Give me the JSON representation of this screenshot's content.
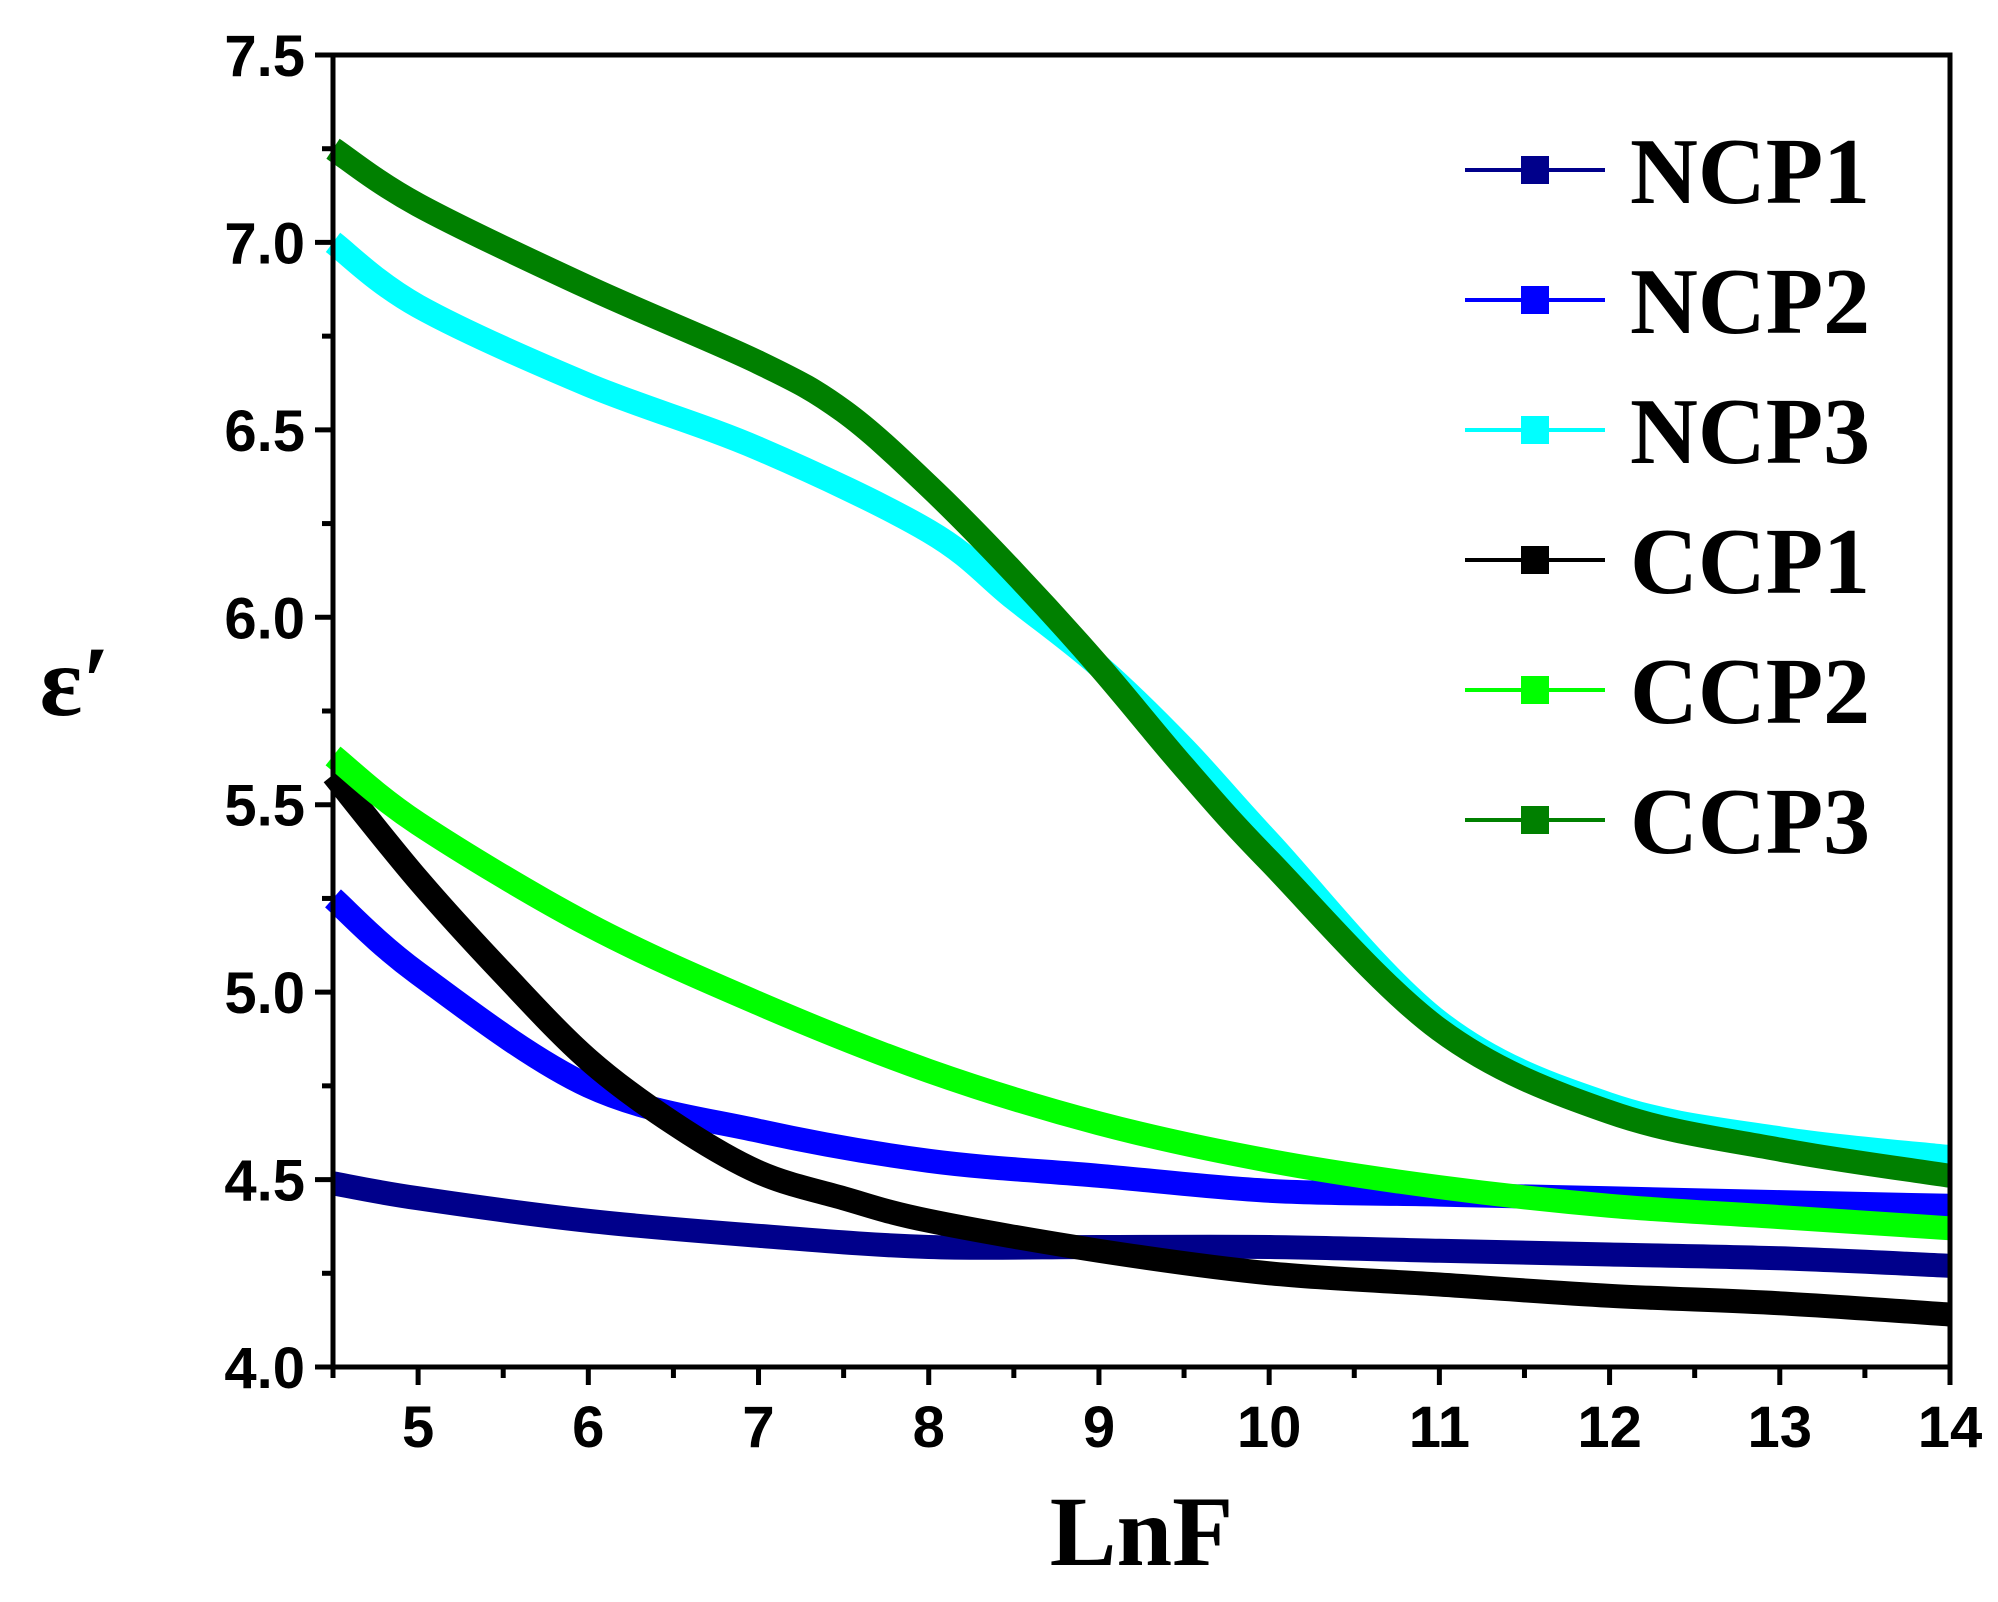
{
  "chart_data": {
    "type": "line",
    "title": "",
    "xlabel": "LnF",
    "ylabel": "ε′",
    "xlim": [
      4.5,
      14
    ],
    "ylim": [
      4.0,
      7.5
    ],
    "xticks": [
      5,
      6,
      7,
      8,
      9,
      10,
      11,
      12,
      13,
      14
    ],
    "xtick_labels": [
      "5",
      "6",
      "7",
      "8",
      "9",
      "10",
      "11",
      "12",
      "13",
      "14"
    ],
    "yticks": [
      4.0,
      4.5,
      5.0,
      5.5,
      6.0,
      6.5,
      7.0,
      7.5
    ],
    "ytick_labels": [
      "4.0",
      "4.5",
      "5.0",
      "5.5",
      "6.0",
      "6.5",
      "7.0",
      "7.5"
    ],
    "legend_position": "top-right",
    "grid": false,
    "series": [
      {
        "name": "NCP1",
        "color": "#00008B",
        "x": [
          4.5,
          5,
          6,
          7,
          8,
          9,
          10,
          11,
          12,
          13,
          14
        ],
        "y": [
          4.49,
          4.45,
          4.39,
          4.35,
          4.32,
          4.32,
          4.32,
          4.31,
          4.3,
          4.29,
          4.27
        ]
      },
      {
        "name": "NCP2",
        "color": "#0000FF",
        "x": [
          4.5,
          5,
          6,
          7,
          8,
          9,
          10,
          11,
          12,
          13,
          14
        ],
        "y": [
          5.25,
          5.05,
          4.75,
          4.63,
          4.55,
          4.51,
          4.47,
          4.46,
          4.45,
          4.44,
          4.43
        ]
      },
      {
        "name": "NCP3",
        "color": "#00FFFF",
        "x": [
          4.5,
          5,
          6,
          7,
          8,
          8.5,
          9,
          9.5,
          10,
          11,
          12,
          13,
          14
        ],
        "y": [
          7.0,
          6.83,
          6.62,
          6.45,
          6.23,
          6.05,
          5.87,
          5.65,
          5.4,
          4.92,
          4.7,
          4.61,
          4.56
        ]
      },
      {
        "name": "CCP1",
        "color": "#000000",
        "x": [
          4.5,
          5,
          5.5,
          6,
          6.5,
          7,
          7.5,
          8,
          9,
          10,
          11,
          12,
          13,
          14
        ],
        "y": [
          5.58,
          5.3,
          5.05,
          4.82,
          4.65,
          4.52,
          4.45,
          4.39,
          4.31,
          4.25,
          4.22,
          4.19,
          4.17,
          4.14
        ]
      },
      {
        "name": "CCP2",
        "color": "#00FF00",
        "x": [
          4.5,
          5,
          6,
          7,
          8,
          9,
          10,
          11,
          12,
          13,
          14
        ],
        "y": [
          5.63,
          5.45,
          5.18,
          4.97,
          4.79,
          4.65,
          4.55,
          4.48,
          4.43,
          4.4,
          4.37
        ]
      },
      {
        "name": "CCP3",
        "color": "#008000",
        "x": [
          4.5,
          5,
          6,
          7,
          7.5,
          8,
          8.5,
          9,
          9.5,
          10,
          11,
          12,
          13,
          14
        ],
        "y": [
          7.25,
          7.1,
          6.88,
          6.68,
          6.55,
          6.35,
          6.12,
          5.87,
          5.6,
          5.35,
          4.9,
          4.68,
          4.58,
          4.51
        ]
      }
    ]
  }
}
